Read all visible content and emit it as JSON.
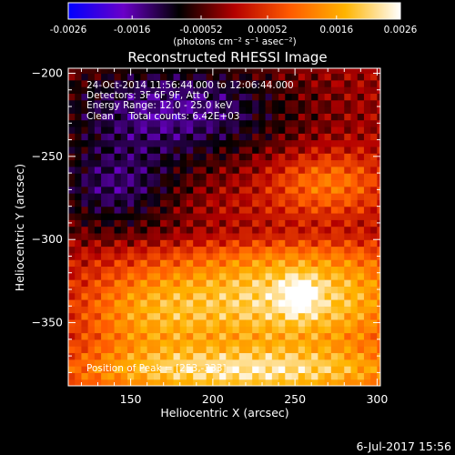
{
  "chart_data": {
    "type": "heatmap",
    "title": "Reconstructed RHESSI Image",
    "xlabel": "Heliocentric X (arcsec)",
    "ylabel": "Heliocentric Y (arcsec)",
    "xlim": [
      112,
      302
    ],
    "ylim": [
      -388,
      -197
    ],
    "x_ticks": [
      150,
      200,
      250,
      300
    ],
    "y_ticks": [
      -200,
      -250,
      -300,
      -350
    ],
    "colorbar": {
      "min": -0.0026,
      "max": 0.0026,
      "ticks": [
        "-0.0026",
        "-0.0016",
        "-0.00052",
        "0.00052",
        "0.0016",
        "0.0026"
      ],
      "tick_values": [
        -0.0026,
        -0.0016,
        -0.00052,
        0.00052,
        0.0016,
        0.0026
      ],
      "unit_label": "(photons cm⁻² s⁻¹ asec⁻²)",
      "colors": [
        "#0000ff",
        "#6a00c8",
        "#000000",
        "#b40000",
        "#ff5a00",
        "#ffb400",
        "#ffffff"
      ]
    },
    "info_lines": [
      "24-Oct-2014 11:56:44.000 to 12:06:44.000",
      "Detectors: 3F 6F 9F, Att 0",
      "Energy Range: 12.0 - 25.0 keV",
      "Clean     Total counts: 6.42E+03"
    ],
    "peak_annotation": "Position of Peak = [253,-333]",
    "peak": {
      "x": 253,
      "y": -333
    },
    "regions": [
      {
        "cx": 175,
        "cy": -222,
        "rx": 75,
        "ry": 32,
        "value": -0.0015
      },
      {
        "cx": 140,
        "cy": -270,
        "rx": 40,
        "ry": 25,
        "value": -0.0012
      },
      {
        "cx": 270,
        "cy": -265,
        "rx": 35,
        "ry": 18,
        "value": 0.0011
      },
      {
        "cx": 225,
        "cy": -295,
        "rx": 110,
        "ry": 10,
        "value": -0.0004
      },
      {
        "cx": 250,
        "cy": -335,
        "rx": 75,
        "ry": 35,
        "value": 0.0022
      },
      {
        "cx": 160,
        "cy": -345,
        "rx": 45,
        "ry": 30,
        "value": 0.0012
      },
      {
        "cx": 220,
        "cy": -380,
        "rx": 110,
        "ry": 15,
        "value": 0.0019
      }
    ]
  },
  "timestamp": "6-Jul-2017 15:56"
}
